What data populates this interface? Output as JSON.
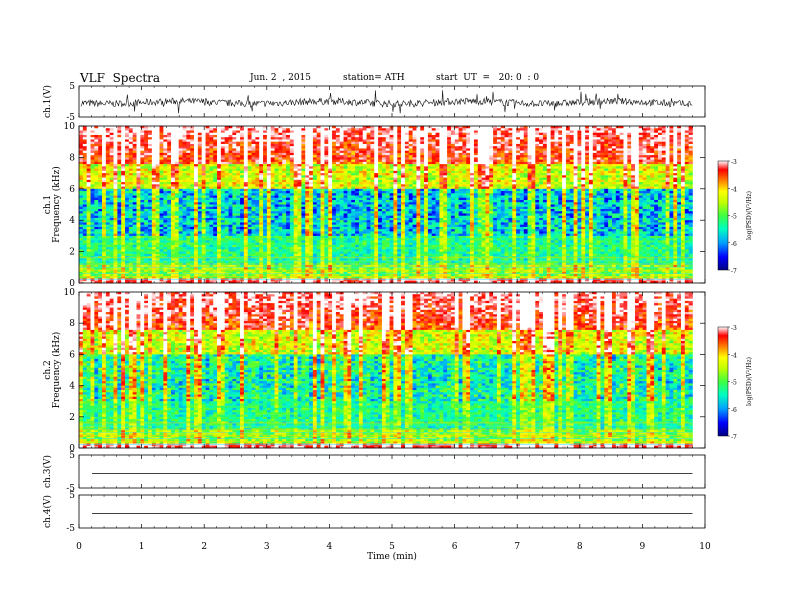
{
  "header": {
    "title": "VLF  Spectra",
    "date": "Jun. 2  , 2015",
    "station": "station= ATH",
    "start": "start  UT  =   20: 0  : 0"
  },
  "chart_data": [
    {
      "type": "line",
      "ylabel": "ch.1(V)",
      "ylim": [
        -5,
        5
      ],
      "yticks": [
        "5",
        "-5"
      ],
      "x_range_min": [
        0,
        9.8
      ],
      "description_visible": "noisy waveform around 0 V"
    },
    {
      "type": "heatmap",
      "ylabel": [
        "ch.1",
        "Frequency  (kHz)"
      ],
      "ylim": [
        0,
        10
      ],
      "yticks": [
        "0",
        "2",
        "4",
        "6",
        "8",
        "10"
      ],
      "colorbar": {
        "label": "log(PSD)(V²/Hz)",
        "ticks": [
          "-3",
          "-4",
          "-5",
          "-6",
          "-7"
        ],
        "range": [
          -7,
          -3
        ]
      },
      "colormap": [
        "#000080",
        "#0000ff",
        "#00a0ff",
        "#00ffc0",
        "#40ff40",
        "#c0ff00",
        "#ffff00",
        "#ff8000",
        "#ff0000",
        "#ffffff"
      ]
    },
    {
      "type": "heatmap",
      "ylabel": [
        "ch.2",
        "Frequency  (kHz)"
      ],
      "ylim": [
        0,
        10
      ],
      "yticks": [
        "0",
        "2",
        "4",
        "6",
        "8",
        "10"
      ],
      "colorbar": {
        "label": "log(PSD)(V²/Hz)",
        "ticks": [
          "-3",
          "-4",
          "-5",
          "-6",
          "-7"
        ],
        "range": [
          -7,
          -3
        ]
      }
    },
    {
      "type": "line",
      "ylabel": "ch.3(V)",
      "ylim": [
        -5,
        5
      ],
      "yticks": [
        "5",
        "-5"
      ],
      "description_visible": "flat line near 0 V"
    },
    {
      "type": "line",
      "ylabel": "ch.4(V)",
      "ylim": [
        -5,
        5
      ],
      "yticks": [
        "5",
        "-5"
      ],
      "description_visible": "flat line near 0 V"
    }
  ],
  "xaxis": {
    "label": "Time  (min)",
    "ticks": [
      "0",
      "1",
      "2",
      "3",
      "4",
      "5",
      "6",
      "7",
      "8",
      "9",
      "10"
    ],
    "range": [
      0,
      10
    ],
    "data_end": 9.8
  }
}
